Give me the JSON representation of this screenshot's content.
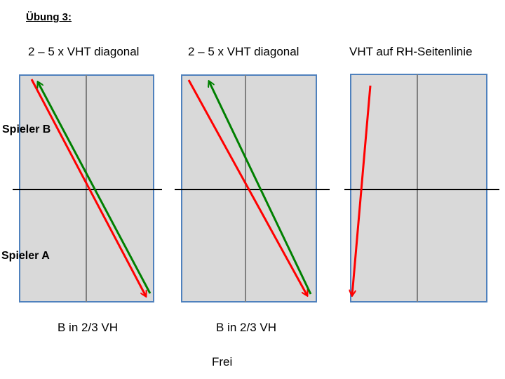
{
  "title": "Übung 3:",
  "columns": [
    {
      "heading": "2 – 5 x VHT diagonal",
      "footer": "B in 2/3 VH"
    },
    {
      "heading": "2 – 5 x VHT diagonal",
      "footer": "B in 2/3 VH"
    },
    {
      "heading": "VHT auf RH-Seitenlinie",
      "footer": ""
    }
  ],
  "players": {
    "b": "Spieler B",
    "a": "Spieler A"
  },
  "note": "Frei",
  "colors": {
    "court_fill": "#d9d9d9",
    "court_border": "#4f81bd",
    "center_line": "#808080",
    "net": "#000000",
    "red_arrow": "#ff0000",
    "green_arrow": "#008000"
  }
}
